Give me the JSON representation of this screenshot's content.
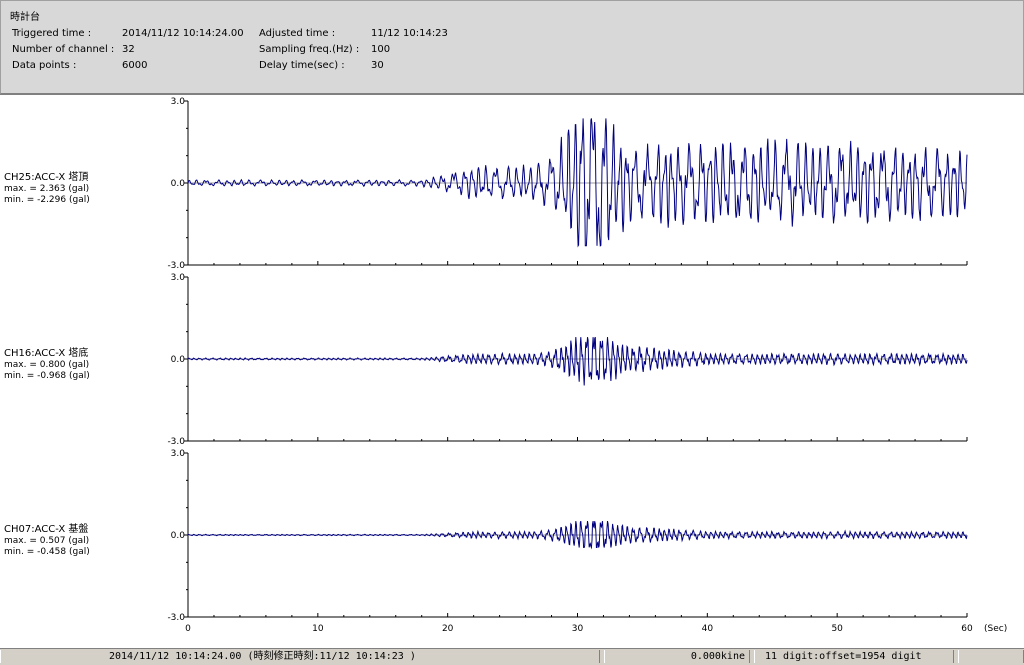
{
  "header": {
    "title": "時計台",
    "triggered_label": "Triggered time :",
    "triggered_value": "2014/11/12 10:14:24.00",
    "adjusted_label": "Adjusted time :",
    "adjusted_value": "11/12 10:14:23",
    "channels_label": "Number of channel :",
    "channels_value": "32",
    "sampling_label": "Sampling freq.(Hz) :",
    "sampling_value": "100",
    "points_label": "Data points :",
    "points_value": "6000",
    "delay_label": "Delay time(sec) :",
    "delay_value": "30"
  },
  "status": {
    "time": "2014/11/12 10:14:24.00 (時刻修正時刻:11/12 10:14:23 )",
    "kine": "0.000kine",
    "digit": "11 digit:offset=1954 digit"
  },
  "chart_data": {
    "type": "line",
    "x_label_unit": "(Sec)",
    "xlim": [
      0,
      60
    ],
    "x_ticks": [
      "0",
      "10",
      "20",
      "30",
      "40",
      "50",
      "60"
    ],
    "y_ticks": [
      "3.0",
      "0.0",
      "-3.0"
    ],
    "ylim": [
      -3.0,
      3.0
    ],
    "series": [
      {
        "name": "CH25:ACC-X 塔頂",
        "max_text": "max. = 2.363 (gal)",
        "min_text": "min. = -2.296 (gal)",
        "max": 2.363,
        "min": -2.296,
        "color": "#000080"
      },
      {
        "name": "CH16:ACC-X 塔底",
        "max_text": "max. = 0.800 (gal)",
        "min_text": "min. = -0.968 (gal)",
        "max": 0.8,
        "min": -0.968,
        "color": "#000080"
      },
      {
        "name": "CH07:ACC-X 基盤",
        "max_text": "max. = 0.507 (gal)",
        "min_text": "min. = -0.458 (gal)",
        "max": 0.507,
        "min": -0.458,
        "color": "#000080"
      }
    ]
  }
}
